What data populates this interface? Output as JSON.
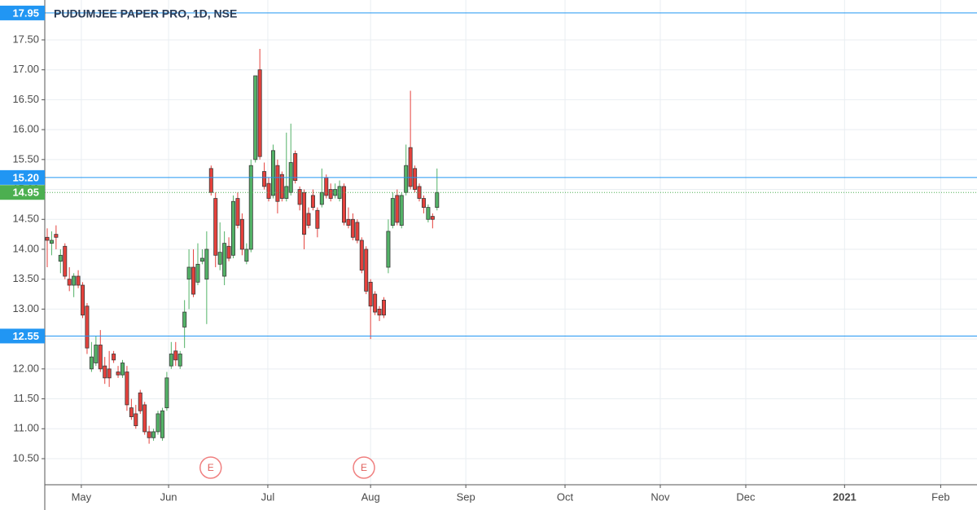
{
  "chart_data": {
    "type": "candlestick",
    "title": "PUDUMJEE PAPER PRO, 1D, NSE",
    "open": [
      14.2,
      14.1,
      14.25,
      13.8,
      14.05,
      13.5,
      13.4,
      13.55,
      13.4,
      13.05,
      12.0,
      12.1,
      12.4,
      12.05,
      12.0,
      12.25,
      11.95,
      11.9,
      11.95,
      11.35,
      11.25,
      11.6,
      11.4,
      10.95,
      10.85,
      10.95,
      10.85,
      11.35,
      12.05,
      12.3,
      12.05,
      12.7,
      13.5,
      13.7,
      13.45,
      13.8,
      13.5,
      15.35,
      14.85,
      13.75,
      13.55,
      14.05,
      13.9,
      14.85,
      14.5,
      13.8,
      14.0,
      15.5,
      17.0,
      15.3,
      15.1,
      14.9,
      15.4,
      15.25,
      14.85,
      14.95,
      15.6,
      15.0,
      14.95,
      14.6,
      14.9,
      14.65,
      14.75,
      15.2,
      15.0,
      14.9,
      14.85,
      15.05,
      14.5,
      14.5,
      14.45,
      14.15,
      14.0,
      13.45,
      13.25,
      13.0,
      13.15,
      13.7,
      14.4,
      14.9,
      14.4,
      14.95,
      15.7,
      15.35,
      15.05,
      14.85,
      14.5,
      14.55,
      14.7
    ],
    "high": [
      14.35,
      14.3,
      14.4,
      14.0,
      14.1,
      13.7,
      13.6,
      13.65,
      13.45,
      13.1,
      12.45,
      12.55,
      12.65,
      12.2,
      12.3,
      12.3,
      12.05,
      12.15,
      12.05,
      11.5,
      11.4,
      11.65,
      11.45,
      11.05,
      11.0,
      11.3,
      11.35,
      11.95,
      12.45,
      12.45,
      12.3,
      13.15,
      14.0,
      14.0,
      14.1,
      14.0,
      14.3,
      15.4,
      14.95,
      14.45,
      14.3,
      14.2,
      14.9,
      14.95,
      14.6,
      14.1,
      15.5,
      16.9,
      17.35,
      15.45,
      15.2,
      15.75,
      15.5,
      15.3,
      15.95,
      16.1,
      15.65,
      15.05,
      15.0,
      14.7,
      15.0,
      14.7,
      15.35,
      15.25,
      15.1,
      15.1,
      15.15,
      15.1,
      14.7,
      14.6,
      14.5,
      14.2,
      14.05,
      13.5,
      13.3,
      13.05,
      13.2,
      14.5,
      14.95,
      15.0,
      14.95,
      15.75,
      16.65,
      15.4,
      15.1,
      14.9,
      14.75,
      14.6,
      15.35
    ],
    "low": [
      13.7,
      13.9,
      14.0,
      13.6,
      13.5,
      13.3,
      13.2,
      13.35,
      12.85,
      12.25,
      11.95,
      12.05,
      11.95,
      11.75,
      11.7,
      12.1,
      11.85,
      11.85,
      11.3,
      11.15,
      11.0,
      11.25,
      10.9,
      10.75,
      10.8,
      10.9,
      10.8,
      11.3,
      12.0,
      12.05,
      12.0,
      12.35,
      13.0,
      13.2,
      13.4,
      13.75,
      12.75,
      14.9,
      13.7,
      13.65,
      13.4,
      13.8,
      13.85,
      14.35,
      13.9,
      13.75,
      13.95,
      15.45,
      15.5,
      15.0,
      14.8,
      14.85,
      14.6,
      14.8,
      14.8,
      14.9,
      15.1,
      14.65,
      14.0,
      14.35,
      14.65,
      14.2,
      14.7,
      14.85,
      14.8,
      14.85,
      14.8,
      14.4,
      14.35,
      14.15,
      14.1,
      13.6,
      13.25,
      12.5,
      12.9,
      12.8,
      12.85,
      13.6,
      14.35,
      14.4,
      14.35,
      14.9,
      15.0,
      14.95,
      14.8,
      14.6,
      14.45,
      14.35,
      14.65
    ],
    "close": [
      14.15,
      14.15,
      14.2,
      13.9,
      13.55,
      13.4,
      13.55,
      13.4,
      12.9,
      12.35,
      12.2,
      12.4,
      12.0,
      11.85,
      11.85,
      12.15,
      11.9,
      12.1,
      11.4,
      11.2,
      11.05,
      11.3,
      10.95,
      10.85,
      10.95,
      11.25,
      11.3,
      11.85,
      12.25,
      12.15,
      12.25,
      12.95,
      13.7,
      13.25,
      13.75,
      13.85,
      14.0,
      14.95,
      13.9,
      13.95,
      14.1,
      13.85,
      14.8,
      14.4,
      14.0,
      14.0,
      15.4,
      16.9,
      15.55,
      15.05,
      14.85,
      15.65,
      14.8,
      14.85,
      15.05,
      15.45,
      15.15,
      14.75,
      14.25,
      14.4,
      14.7,
      14.35,
      14.95,
      14.9,
      14.85,
      15.0,
      15.05,
      14.45,
      14.4,
      14.2,
      14.15,
      13.65,
      13.3,
      13.05,
      12.95,
      12.9,
      12.9,
      14.3,
      14.85,
      14.45,
      14.9,
      15.4,
      15.05,
      15.0,
      14.85,
      14.7,
      14.7,
      14.5,
      14.95
    ],
    "up_color": "#53b267",
    "down_color": "#e5413c",
    "border_color": "#3a3a3a",
    "ylim": [
      10.064,
      18.167
    ],
    "yticks": [
      {
        "value": 10.5,
        "label": "10.50"
      },
      {
        "value": 11,
        "label": "11.00"
      },
      {
        "value": 11.5,
        "label": "11.50"
      },
      {
        "value": 12,
        "label": "12.00"
      },
      {
        "value": 12.5,
        "label": "12.50"
      },
      {
        "value": 13,
        "label": "13.00"
      },
      {
        "value": 13.5,
        "label": "13.50"
      },
      {
        "value": 14,
        "label": "14.00"
      },
      {
        "value": 14.5,
        "label": "14.50"
      },
      {
        "value": 15,
        "label": "15.00"
      },
      {
        "value": 15.5,
        "label": "15.50"
      },
      {
        "value": 16,
        "label": "16.00"
      },
      {
        "value": 16.5,
        "label": "16.50"
      },
      {
        "value": 17,
        "label": "17.00"
      },
      {
        "value": 17.5,
        "label": "17.50"
      }
    ],
    "xlim": [
      -0.55,
      209.9
    ],
    "xticks": [
      {
        "value": 7.7,
        "label": "May"
      },
      {
        "value": 27.4,
        "label": "Jun"
      },
      {
        "value": 49.8,
        "label": "Jul"
      },
      {
        "value": 73,
        "label": "Aug"
      },
      {
        "value": 94.5,
        "label": "Sep"
      },
      {
        "value": 116.9,
        "label": "Oct"
      },
      {
        "value": 138.4,
        "label": "Nov"
      },
      {
        "value": 157.7,
        "label": "Dec"
      },
      {
        "value": 180,
        "label": "2021"
      },
      {
        "value": 201.7,
        "label": "Feb"
      }
    ],
    "grid": true,
    "price_lines": [
      {
        "price": 17.95,
        "label": "17.95",
        "color": "#2196f3",
        "style": "solid"
      },
      {
        "price": 15.2,
        "label": "15.20",
        "color": "#2196f3",
        "style": "solid"
      },
      {
        "price": 14.95,
        "label": "14.95",
        "color": "#4caf50",
        "style": "dotted"
      },
      {
        "price": 12.55,
        "label": "12.55",
        "color": "#2196f3",
        "style": "solid"
      }
    ],
    "events": [
      {
        "x": 36.9,
        "label": "E"
      },
      {
        "x": 71.5,
        "label": "E"
      }
    ]
  }
}
